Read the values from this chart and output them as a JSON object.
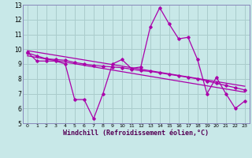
{
  "xlabel": "Windchill (Refroidissement éolien,°C)",
  "xlim": [
    -0.5,
    23.5
  ],
  "ylim": [
    5,
    13
  ],
  "xticks": [
    0,
    1,
    2,
    3,
    4,
    5,
    6,
    7,
    8,
    9,
    10,
    11,
    12,
    13,
    14,
    15,
    16,
    17,
    18,
    19,
    20,
    21,
    22,
    23
  ],
  "yticks": [
    5,
    6,
    7,
    8,
    9,
    10,
    11,
    12,
    13
  ],
  "bg_color": "#c8e8e8",
  "grid_color": "#aacccc",
  "line_color": "#aa00aa",
  "line1_x": [
    0,
    1,
    2,
    3,
    4,
    5,
    6,
    7,
    8,
    9,
    10,
    11,
    12,
    13,
    14,
    15,
    16,
    17,
    18,
    19,
    20,
    21,
    22,
    23
  ],
  "line1_y": [
    9.8,
    9.2,
    9.2,
    9.2,
    9.0,
    6.6,
    6.6,
    5.3,
    7.0,
    9.0,
    9.3,
    8.7,
    8.8,
    11.5,
    12.8,
    11.7,
    10.7,
    10.8,
    9.3,
    7.0,
    8.1,
    7.0,
    6.0,
    6.5
  ],
  "line2_x": [
    0,
    1,
    2,
    3,
    4,
    5,
    6,
    7,
    8,
    9,
    10,
    11,
    12,
    13,
    14,
    15,
    16,
    17,
    18,
    19,
    20,
    21,
    22,
    23
  ],
  "line2_y": [
    9.75,
    9.55,
    9.35,
    9.3,
    9.25,
    9.1,
    9.0,
    8.9,
    8.85,
    8.8,
    8.75,
    8.65,
    8.55,
    8.5,
    8.4,
    8.3,
    8.2,
    8.1,
    8.0,
    7.85,
    7.7,
    7.55,
    7.4,
    7.25
  ],
  "line3_start_x": 0,
  "line3_start_y": 9.9,
  "line3_end_x": 23,
  "line3_end_y": 7.5,
  "line4_start_x": 0,
  "line4_start_y": 9.55,
  "line4_end_x": 23,
  "line4_end_y": 7.1,
  "spine_color": "#8888bb",
  "xlabel_color": "#550055",
  "xlabel_fontsize": 6.0,
  "tick_fontsize_x": 4.5,
  "tick_fontsize_y": 5.5
}
